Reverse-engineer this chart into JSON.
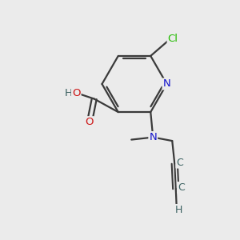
{
  "bg_color": "#ebebeb",
  "bond_color": "#3a3a3a",
  "atom_colors": {
    "N": "#1414cc",
    "O": "#cc1414",
    "Cl": "#22bb00",
    "C": "#3a6060",
    "H": "#3a6060"
  }
}
